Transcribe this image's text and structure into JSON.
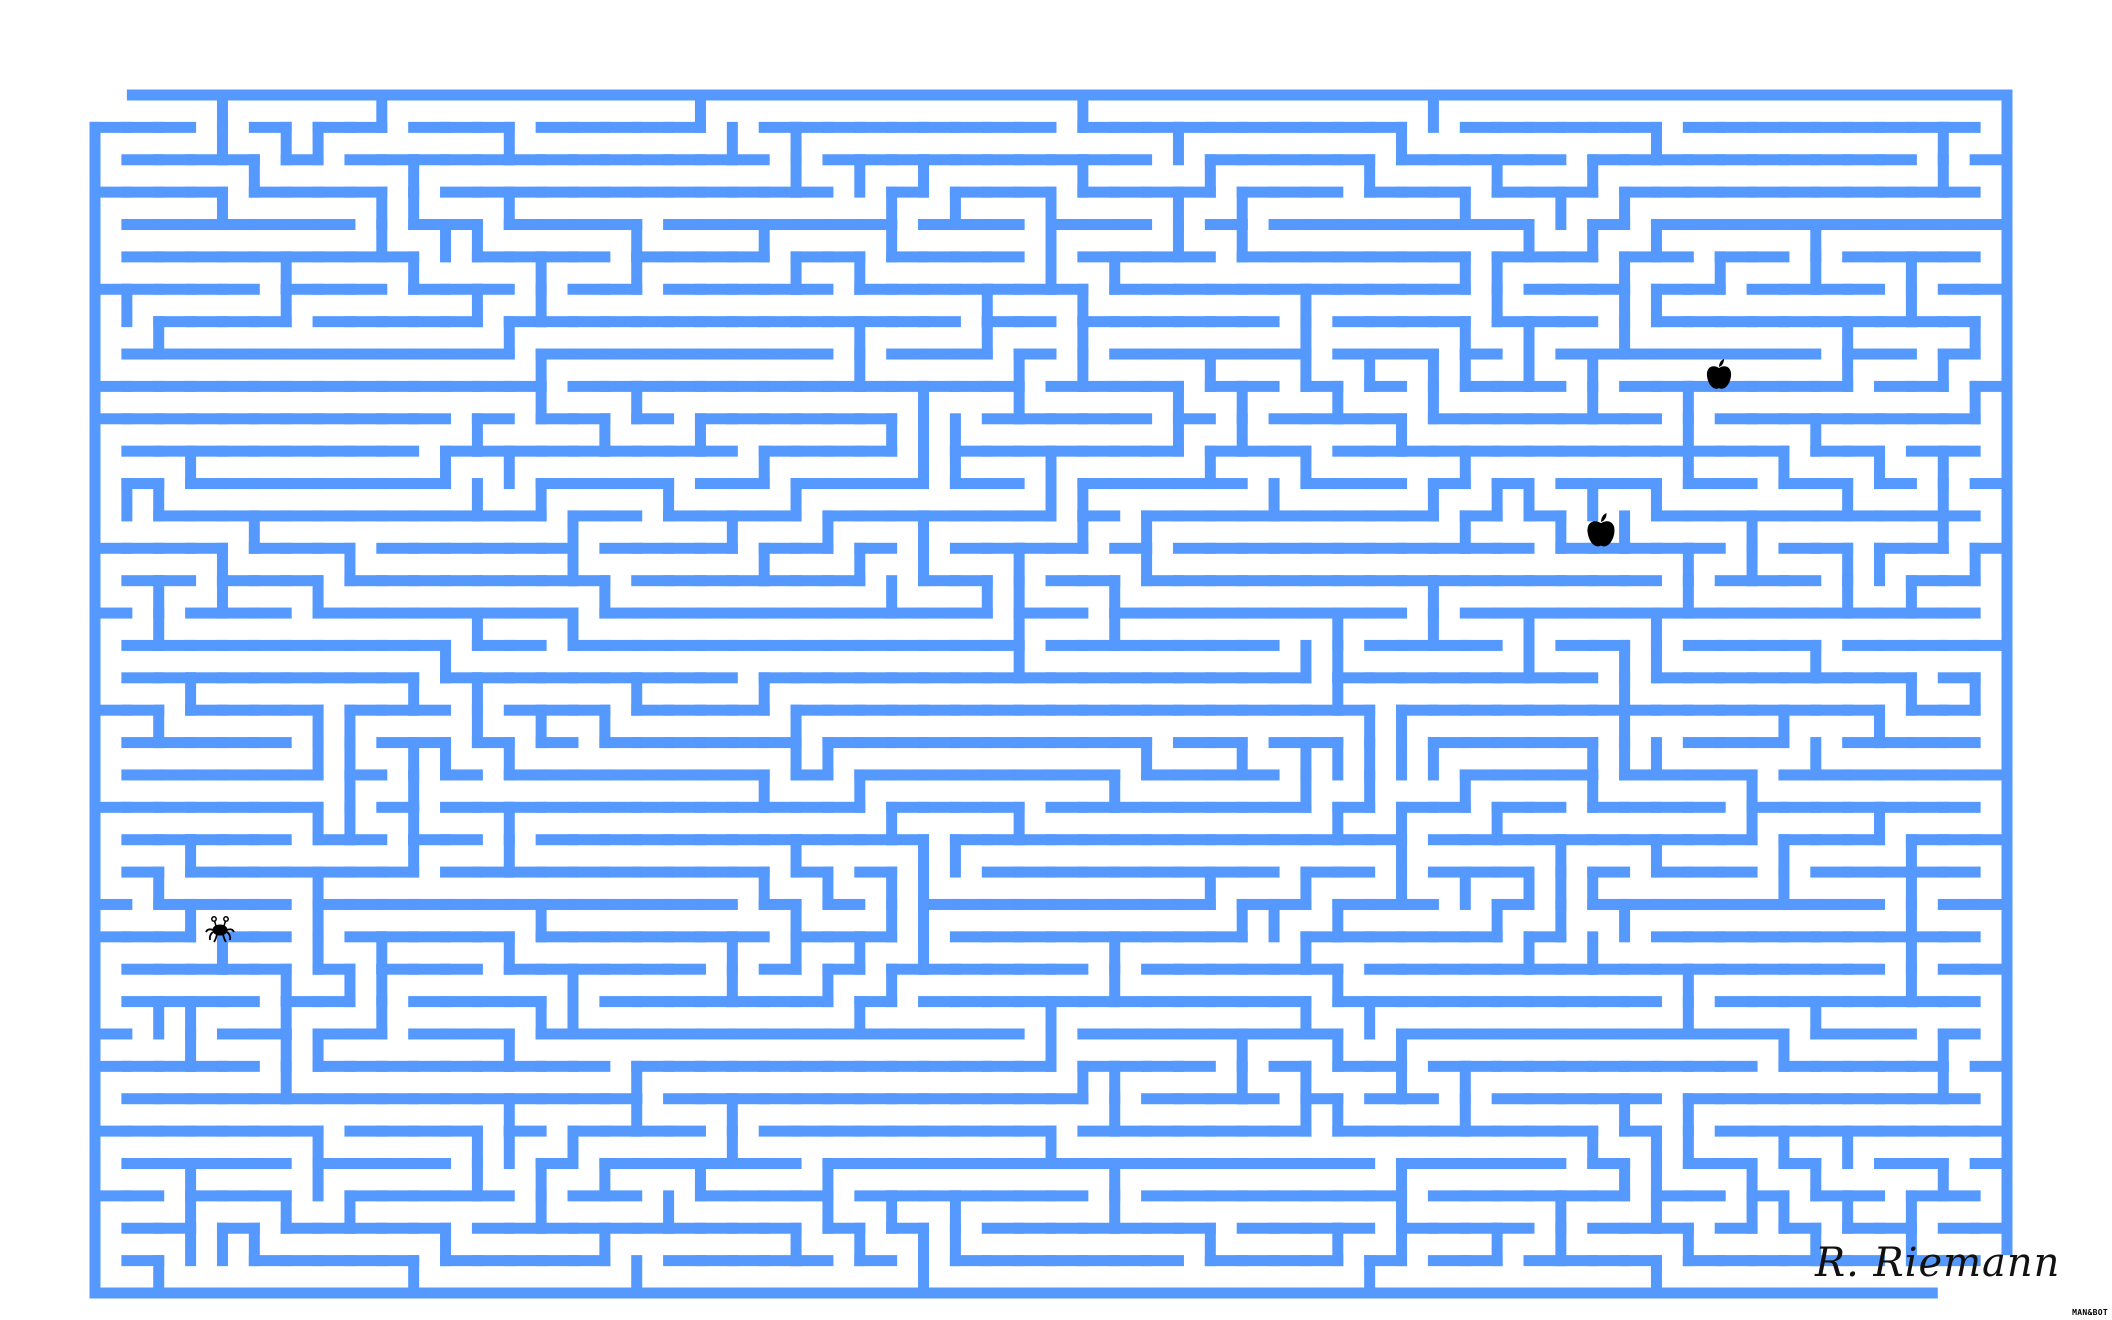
{
  "game": {
    "type": "maze",
    "wall_color": "#5599ff",
    "background_color": "#ffffff",
    "player": {
      "icon": "flying-spaghetti-monster-icon"
    },
    "items": [
      {
        "icon": "apple-icon"
      },
      {
        "icon": "apple-icon"
      }
    ]
  },
  "signature": {
    "text": "R. Riemann"
  },
  "credit": {
    "text": "MAN&BOT"
  }
}
